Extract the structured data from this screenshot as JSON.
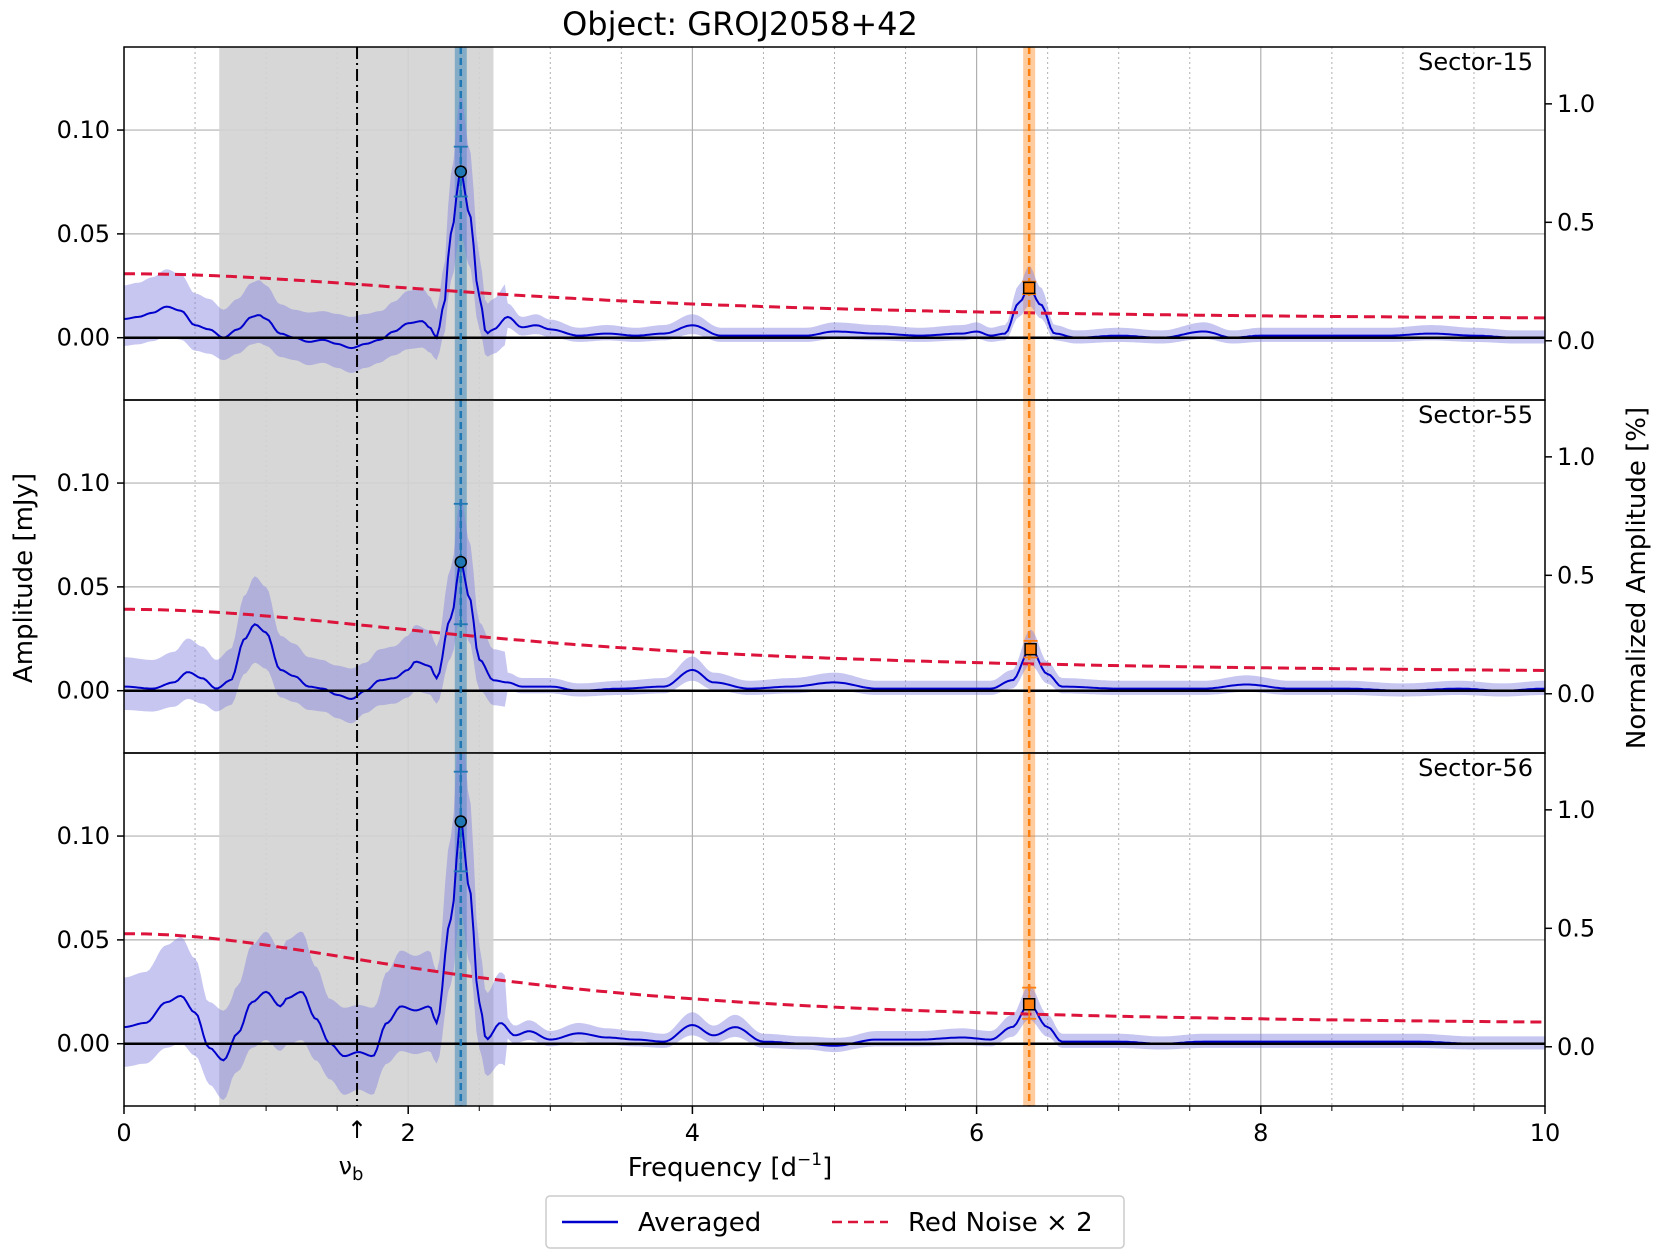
{
  "chart_data": {
    "type": "line",
    "title": "Object: GROJ2058+42",
    "xlabel": "Frequency [d$^{-1}$]",
    "xlabel_text": "Frequency [d",
    "xlabel_sup": "−1",
    "xlabel_close": "]",
    "ylabel": "Amplitude [mJy]",
    "ylabel_right": "Normalized Amplitude [%]",
    "xlim": [
      0,
      10
    ],
    "ylim": [
      -0.03,
      0.14
    ],
    "ylim_right": [
      -0.25,
      1.24
    ],
    "x_ticks": [
      0,
      2,
      4,
      6,
      8,
      10
    ],
    "x_tick_labels": [
      "0",
      "2",
      "4",
      "6",
      "8",
      "10"
    ],
    "y_ticks": [
      0.0,
      0.05,
      0.1
    ],
    "y_tick_labels": [
      "0.00",
      "0.05",
      "0.10"
    ],
    "y_right_ticks": [
      0.0,
      0.5,
      1.0
    ],
    "y_right_tick_labels": [
      "0.0",
      "0.5",
      "1.0"
    ],
    "grid": true,
    "shaded_band_x": [
      0.67,
      2.6
    ],
    "nu_b": {
      "x": 1.64,
      "label": "ν",
      "sub": "b",
      "arrow": "↑"
    },
    "blue_line_x": 2.37,
    "orange_line_x": 6.37,
    "legend": {
      "placement": "bottom-center",
      "entries": [
        {
          "label": "Averaged",
          "color": "#0000cc",
          "style": "solid"
        },
        {
          "label": "Red Noise × 2",
          "color": "#dc143c",
          "style": "dashed"
        }
      ]
    },
    "colors": {
      "averaged": "#0000cc",
      "band": "#8080e0",
      "red_noise": "#dc143c",
      "blue_marker": "#1f77b4",
      "orange_marker": "#ff7f0e",
      "shade": "#d3d3d3"
    },
    "panels": [
      {
        "sector": "Sector-15",
        "peak1": {
          "x": 2.37,
          "y": 0.08,
          "err": [
            0.068,
            0.092
          ]
        },
        "peak2": {
          "x": 6.37,
          "y": 0.024,
          "err": [
            0.021,
            0.027
          ]
        },
        "red_noise": {
          "y0": 0.0308,
          "yinf": 0.0075,
          "xc": 3.1
        },
        "averaged": [
          [
            0,
            0.009
          ],
          [
            0.1,
            0.01
          ],
          [
            0.2,
            0.012
          ],
          [
            0.3,
            0.015
          ],
          [
            0.4,
            0.013
          ],
          [
            0.5,
            0.006
          ],
          [
            0.6,
            0.004
          ],
          [
            0.7,
            0.0
          ],
          [
            0.8,
            0.004
          ],
          [
            0.9,
            0.01
          ],
          [
            0.95,
            0.011
          ],
          [
            1.0,
            0.009
          ],
          [
            1.1,
            0.002
          ],
          [
            1.2,
            0.0
          ],
          [
            1.3,
            -0.002
          ],
          [
            1.4,
            -0.001
          ],
          [
            1.5,
            -0.003
          ],
          [
            1.6,
            -0.005
          ],
          [
            1.7,
            -0.003
          ],
          [
            1.8,
            -0.001
          ],
          [
            1.9,
            0.003
          ],
          [
            2.0,
            0.007
          ],
          [
            2.1,
            0.008
          ],
          [
            2.15,
            0.005
          ],
          [
            2.2,
            0.0
          ],
          [
            2.25,
            0.015
          ],
          [
            2.3,
            0.05
          ],
          [
            2.37,
            0.08
          ],
          [
            2.43,
            0.06
          ],
          [
            2.5,
            0.02
          ],
          [
            2.55,
            0.002
          ],
          [
            2.6,
            0.004
          ],
          [
            2.7,
            0.01
          ],
          [
            2.8,
            0.005
          ],
          [
            2.9,
            0.006
          ],
          [
            3.0,
            0.004
          ],
          [
            3.2,
            0.001
          ],
          [
            3.4,
            0.002
          ],
          [
            3.6,
            0.001
          ],
          [
            3.8,
            0.002
          ],
          [
            4.0,
            0.006
          ],
          [
            4.2,
            0.001
          ],
          [
            4.5,
            0.001
          ],
          [
            4.8,
            0.001
          ],
          [
            5.0,
            0.003
          ],
          [
            5.3,
            0.002
          ],
          [
            5.6,
            0.001
          ],
          [
            5.9,
            0.002
          ],
          [
            6.0,
            0.003
          ],
          [
            6.1,
            0.001
          ],
          [
            6.2,
            0.002
          ],
          [
            6.3,
            0.017
          ],
          [
            6.37,
            0.024
          ],
          [
            6.45,
            0.016
          ],
          [
            6.55,
            0.002
          ],
          [
            6.7,
            0.0
          ],
          [
            7.0,
            0.001
          ],
          [
            7.3,
            0.0
          ],
          [
            7.6,
            0.003
          ],
          [
            7.8,
            0.0
          ],
          [
            8.0,
            0.001
          ],
          [
            8.3,
            0.001
          ],
          [
            8.6,
            0.001
          ],
          [
            8.9,
            0.001
          ],
          [
            9.2,
            0.002
          ],
          [
            9.5,
            0.001
          ],
          [
            9.8,
            0.0
          ],
          [
            10,
            0.0
          ]
        ]
      },
      {
        "sector": "Sector-55",
        "peak1": {
          "x": 2.37,
          "y": 0.062,
          "err": [
            0.032,
            0.09
          ]
        },
        "peak2": {
          "x": 6.38,
          "y": 0.02,
          "err": [
            0.016,
            0.024
          ]
        },
        "red_noise": {
          "y0": 0.0392,
          "yinf": 0.0071,
          "xc": 3.0
        },
        "averaged": [
          [
            0,
            0.002
          ],
          [
            0.2,
            0.001
          ],
          [
            0.35,
            0.004
          ],
          [
            0.45,
            0.009
          ],
          [
            0.55,
            0.006
          ],
          [
            0.65,
            0.001
          ],
          [
            0.75,
            0.005
          ],
          [
            0.85,
            0.025
          ],
          [
            0.92,
            0.032
          ],
          [
            1.0,
            0.028
          ],
          [
            1.1,
            0.01
          ],
          [
            1.2,
            0.007
          ],
          [
            1.3,
            0.002
          ],
          [
            1.4,
            0.001
          ],
          [
            1.5,
            -0.002
          ],
          [
            1.6,
            -0.004
          ],
          [
            1.7,
            0.0
          ],
          [
            1.8,
            0.005
          ],
          [
            1.9,
            0.006
          ],
          [
            2.0,
            0.01
          ],
          [
            2.05,
            0.014
          ],
          [
            2.15,
            0.012
          ],
          [
            2.2,
            0.006
          ],
          [
            2.3,
            0.035
          ],
          [
            2.37,
            0.062
          ],
          [
            2.43,
            0.045
          ],
          [
            2.5,
            0.015
          ],
          [
            2.6,
            0.005
          ],
          [
            2.7,
            0.004
          ],
          [
            2.8,
            0.002
          ],
          [
            3.0,
            0.002
          ],
          [
            3.2,
            0.0
          ],
          [
            3.5,
            0.001
          ],
          [
            3.8,
            0.002
          ],
          [
            4.0,
            0.01
          ],
          [
            4.15,
            0.004
          ],
          [
            4.4,
            0.001
          ],
          [
            4.7,
            0.002
          ],
          [
            5.0,
            0.004
          ],
          [
            5.3,
            0.001
          ],
          [
            5.6,
            0.001
          ],
          [
            5.9,
            0.001
          ],
          [
            6.1,
            0.001
          ],
          [
            6.25,
            0.005
          ],
          [
            6.38,
            0.02
          ],
          [
            6.5,
            0.008
          ],
          [
            6.6,
            0.002
          ],
          [
            7.0,
            0.001
          ],
          [
            7.3,
            0.001
          ],
          [
            7.6,
            0.001
          ],
          [
            7.9,
            0.003
          ],
          [
            8.2,
            0.001
          ],
          [
            8.6,
            0.001
          ],
          [
            9.0,
            0.0
          ],
          [
            9.4,
            0.001
          ],
          [
            9.7,
            0.0
          ],
          [
            10,
            0.001
          ]
        ]
      },
      {
        "sector": "Sector-56",
        "peak1": {
          "x": 2.37,
          "y": 0.107,
          "err": [
            0.083,
            0.131
          ]
        },
        "peak2": {
          "x": 6.37,
          "y": 0.019,
          "err": [
            0.012,
            0.027
          ]
        },
        "red_noise": {
          "y0": 0.053,
          "yinf": 0.0073,
          "xc": 2.7
        },
        "averaged": [
          [
            0,
            0.008
          ],
          [
            0.15,
            0.01
          ],
          [
            0.3,
            0.02
          ],
          [
            0.4,
            0.023
          ],
          [
            0.5,
            0.015
          ],
          [
            0.6,
            -0.002
          ],
          [
            0.7,
            -0.008
          ],
          [
            0.8,
            0.005
          ],
          [
            0.9,
            0.02
          ],
          [
            1.0,
            0.025
          ],
          [
            1.1,
            0.018
          ],
          [
            1.15,
            0.022
          ],
          [
            1.25,
            0.025
          ],
          [
            1.35,
            0.012
          ],
          [
            1.45,
            0.0
          ],
          [
            1.55,
            -0.006
          ],
          [
            1.65,
            -0.004
          ],
          [
            1.75,
            -0.006
          ],
          [
            1.85,
            0.01
          ],
          [
            1.95,
            0.018
          ],
          [
            2.05,
            0.016
          ],
          [
            2.15,
            0.018
          ],
          [
            2.2,
            0.01
          ],
          [
            2.3,
            0.06
          ],
          [
            2.37,
            0.107
          ],
          [
            2.43,
            0.075
          ],
          [
            2.5,
            0.02
          ],
          [
            2.55,
            0.002
          ],
          [
            2.65,
            0.01
          ],
          [
            2.75,
            0.004
          ],
          [
            2.85,
            0.006
          ],
          [
            3.0,
            0.002
          ],
          [
            3.2,
            0.005
          ],
          [
            3.4,
            0.003
          ],
          [
            3.6,
            0.002
          ],
          [
            3.8,
            0.001
          ],
          [
            4.0,
            0.009
          ],
          [
            4.15,
            0.004
          ],
          [
            4.3,
            0.008
          ],
          [
            4.5,
            0.001
          ],
          [
            4.8,
            0.0
          ],
          [
            5.0,
            -0.001
          ],
          [
            5.3,
            0.002
          ],
          [
            5.6,
            0.002
          ],
          [
            5.9,
            0.003
          ],
          [
            6.1,
            0.002
          ],
          [
            6.25,
            0.008
          ],
          [
            6.37,
            0.019
          ],
          [
            6.5,
            0.008
          ],
          [
            6.6,
            0.001
          ],
          [
            7.0,
            0.001
          ],
          [
            7.3,
            0.0
          ],
          [
            7.6,
            0.001
          ],
          [
            7.9,
            0.001
          ],
          [
            8.3,
            0.001
          ],
          [
            8.7,
            0.001
          ],
          [
            9.1,
            0.001
          ],
          [
            9.5,
            0.0
          ],
          [
            10,
            0.0
          ]
        ]
      }
    ]
  }
}
